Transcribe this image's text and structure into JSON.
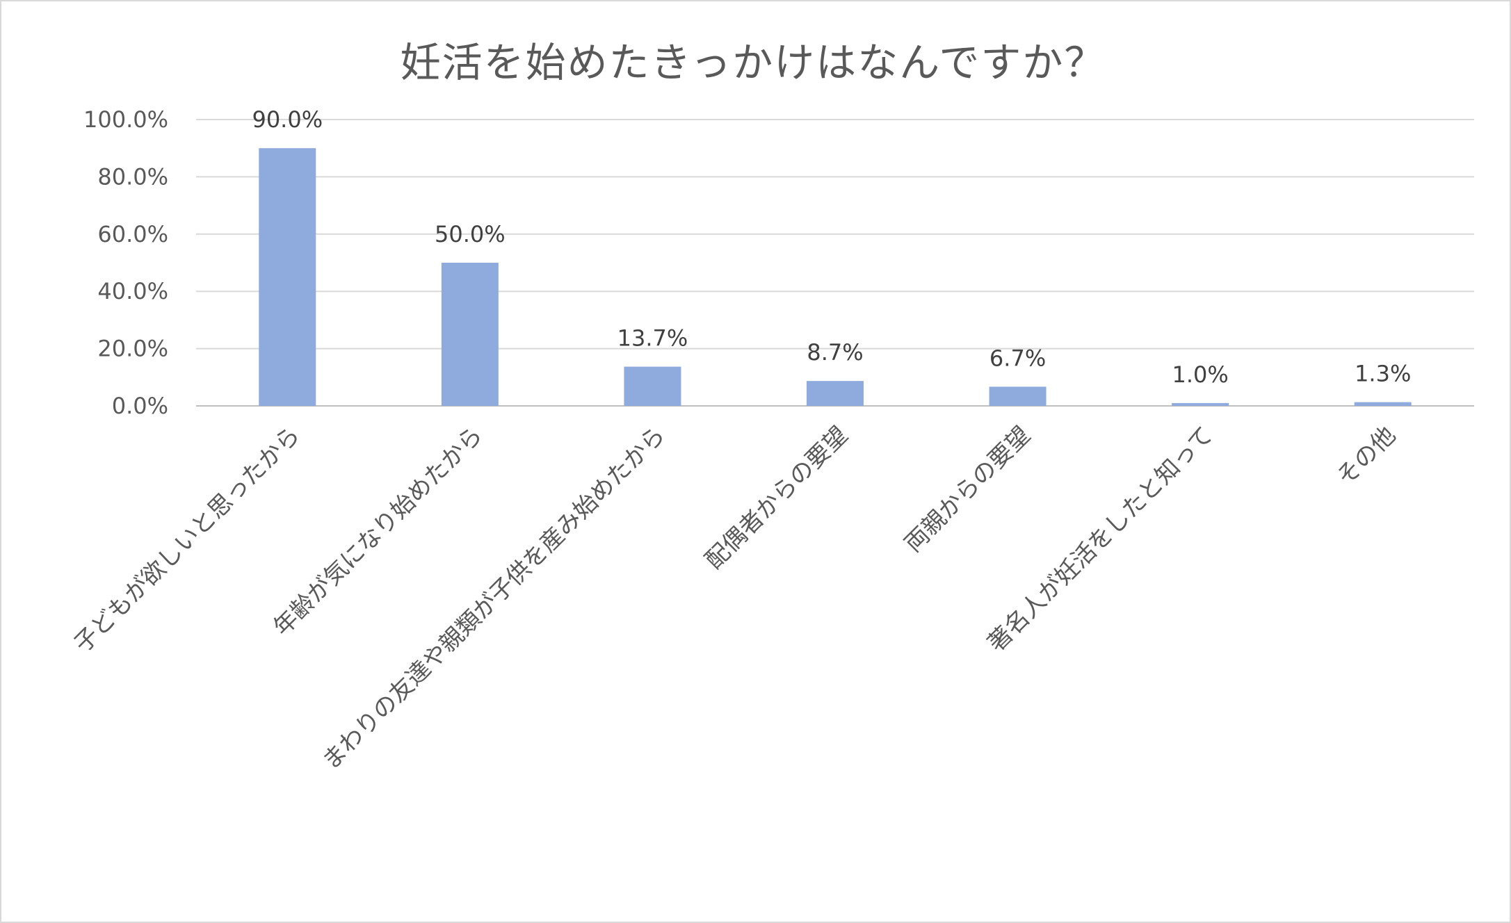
{
  "chart_data": {
    "type": "bar",
    "title": "妊活を始めたきっかけはなんですか？",
    "categories": [
      "子どもが欲しいと思ったから",
      "年齢が気になり始めたから",
      "まわりの友達や親類が子供を産み始めたから",
      "配偶者からの要望",
      "両親からの要望",
      "著名人が妊活をしたと知って",
      "その他"
    ],
    "values": [
      90.0,
      50.0,
      13.7,
      8.7,
      6.7,
      1.0,
      1.3
    ],
    "data_labels": [
      "90.0%",
      "50.0%",
      "13.7%",
      "8.7%",
      "6.7%",
      "1.0%",
      "1.3%"
    ],
    "y_ticks": [
      "0.0%",
      "20.0%",
      "40.0%",
      "60.0%",
      "80.0%",
      "100.0%"
    ],
    "ylim": [
      0,
      100
    ],
    "xlabel": "",
    "ylabel": "",
    "grid": true,
    "legend": "none",
    "bar_color": "#8faadc"
  }
}
